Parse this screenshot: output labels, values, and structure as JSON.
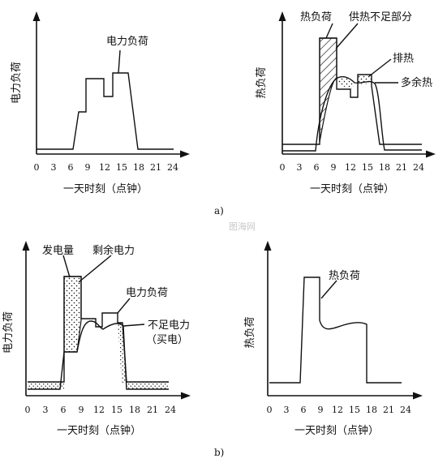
{
  "panel_a": {
    "sublabel": "a)",
    "left": {
      "ylabel": "电力负荷",
      "xlabel": "一天时刻（点钟）",
      "ticks": [
        "0",
        "3",
        "6",
        "9",
        "12",
        "15",
        "18",
        "21",
        "24"
      ],
      "annotation": "电力负荷"
    },
    "right": {
      "ylabel": "热负荷",
      "xlabel": "一天时刻（点钟）",
      "ticks": [
        "0",
        "3",
        "6",
        "9",
        "12",
        "15",
        "18",
        "21",
        "24"
      ],
      "annotations": {
        "heat_load": "热负荷",
        "heat_shortfall": "供热不足部分",
        "exhaust_heat": "排热",
        "surplus_heat": "多余热"
      }
    }
  },
  "panel_b": {
    "sublabel": "b)",
    "left": {
      "ylabel": "电力负荷",
      "xlabel": "一天时刻（点钟）",
      "ticks": [
        "0",
        "3",
        "6",
        "9",
        "12",
        "15",
        "18",
        "21",
        "24"
      ],
      "annotations": {
        "generation": "发电量",
        "surplus_power": "剩余电力",
        "power_load": "电力负荷",
        "shortfall_line1": "不足电力",
        "shortfall_line2": "（买电）"
      }
    },
    "right": {
      "ylabel": "热负荷",
      "xlabel": "一天时刻（点钟）",
      "ticks": [
        "0",
        "3",
        "6",
        "9",
        "12",
        "15",
        "18",
        "21",
        "24"
      ],
      "annotation": "热负荷"
    }
  },
  "watermark": "图海网"
}
